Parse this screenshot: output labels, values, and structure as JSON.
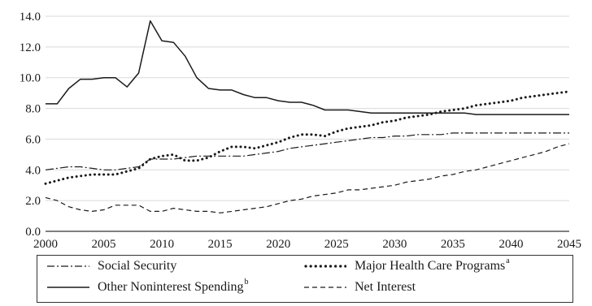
{
  "chart_data": {
    "type": "line",
    "xlim": [
      2000,
      2045
    ],
    "ylim": [
      0,
      14
    ],
    "xticks": [
      2000,
      2005,
      2010,
      2015,
      2020,
      2025,
      2030,
      2035,
      2040,
      2045
    ],
    "yticks": [
      0.0,
      2.0,
      4.0,
      6.0,
      8.0,
      10.0,
      12.0,
      14.0
    ],
    "ytick_labels": [
      "0.0",
      "2.0",
      "4.0",
      "6.0",
      "8.0",
      "10.0",
      "12.0",
      "14.0"
    ],
    "grid": "horizontal",
    "legend_position": "bottom",
    "x": [
      2000,
      2001,
      2002,
      2003,
      2004,
      2005,
      2006,
      2007,
      2008,
      2009,
      2010,
      2011,
      2012,
      2013,
      2014,
      2015,
      2016,
      2017,
      2018,
      2019,
      2020,
      2021,
      2022,
      2023,
      2024,
      2025,
      2026,
      2027,
      2028,
      2029,
      2030,
      2031,
      2032,
      2033,
      2034,
      2035,
      2036,
      2037,
      2038,
      2039,
      2040,
      2041,
      2042,
      2043,
      2044,
      2045
    ],
    "series": [
      {
        "name": "Social Security",
        "note_mark": "",
        "dash": "dash-dot",
        "values": [
          4.0,
          4.1,
          4.2,
          4.2,
          4.1,
          4.0,
          4.0,
          4.1,
          4.2,
          4.7,
          4.7,
          4.7,
          4.8,
          4.9,
          4.9,
          4.9,
          4.9,
          4.9,
          5.0,
          5.1,
          5.2,
          5.4,
          5.5,
          5.6,
          5.7,
          5.8,
          5.9,
          6.0,
          6.1,
          6.1,
          6.2,
          6.2,
          6.3,
          6.3,
          6.3,
          6.4,
          6.4,
          6.4,
          6.4,
          6.4,
          6.4,
          6.4,
          6.4,
          6.4,
          6.4,
          6.4
        ]
      },
      {
        "name": "Major Health Care Programs",
        "note_mark": "a",
        "dash": "dotted",
        "values": [
          3.1,
          3.3,
          3.5,
          3.6,
          3.7,
          3.7,
          3.7,
          3.9,
          4.1,
          4.7,
          4.9,
          5.0,
          4.6,
          4.6,
          4.8,
          5.2,
          5.5,
          5.5,
          5.4,
          5.6,
          5.8,
          6.1,
          6.3,
          6.3,
          6.2,
          6.5,
          6.7,
          6.8,
          6.9,
          7.1,
          7.2,
          7.4,
          7.5,
          7.6,
          7.8,
          7.9,
          8.0,
          8.2,
          8.3,
          8.4,
          8.5,
          8.7,
          8.8,
          8.9,
          9.0,
          9.1
        ]
      },
      {
        "name": "Other Noninterest Spending",
        "note_mark": "b",
        "dash": "solid",
        "values": [
          8.3,
          8.3,
          9.3,
          9.9,
          9.9,
          10.0,
          10.0,
          9.4,
          10.3,
          13.7,
          12.4,
          12.3,
          11.4,
          10.0,
          9.3,
          9.2,
          9.2,
          8.9,
          8.7,
          8.7,
          8.5,
          8.4,
          8.4,
          8.2,
          7.9,
          7.9,
          7.9,
          7.8,
          7.7,
          7.7,
          7.7,
          7.7,
          7.7,
          7.7,
          7.7,
          7.7,
          7.7,
          7.6,
          7.6,
          7.6,
          7.6,
          7.6,
          7.6,
          7.6,
          7.6,
          7.6
        ]
      },
      {
        "name": "Net Interest",
        "note_mark": "",
        "dash": "dashed",
        "values": [
          2.2,
          2.0,
          1.6,
          1.4,
          1.3,
          1.4,
          1.7,
          1.7,
          1.7,
          1.3,
          1.3,
          1.5,
          1.4,
          1.3,
          1.3,
          1.2,
          1.3,
          1.4,
          1.5,
          1.6,
          1.8,
          2.0,
          2.1,
          2.3,
          2.4,
          2.5,
          2.7,
          2.7,
          2.8,
          2.9,
          3.0,
          3.2,
          3.3,
          3.4,
          3.6,
          3.7,
          3.9,
          4.0,
          4.2,
          4.4,
          4.6,
          4.8,
          5.0,
          5.2,
          5.5,
          5.7
        ]
      }
    ]
  },
  "legend": {
    "items": [
      {
        "label": "Social Security",
        "sup": ""
      },
      {
        "label": "Major Health Care Programs",
        "sup": "a"
      },
      {
        "label": "Other Noninterest Spending",
        "sup": "b"
      },
      {
        "label": "Net Interest",
        "sup": ""
      }
    ]
  },
  "colors": {
    "line": "#1a1a1a",
    "grid": "#d9d9d9",
    "axis": "#333333"
  }
}
